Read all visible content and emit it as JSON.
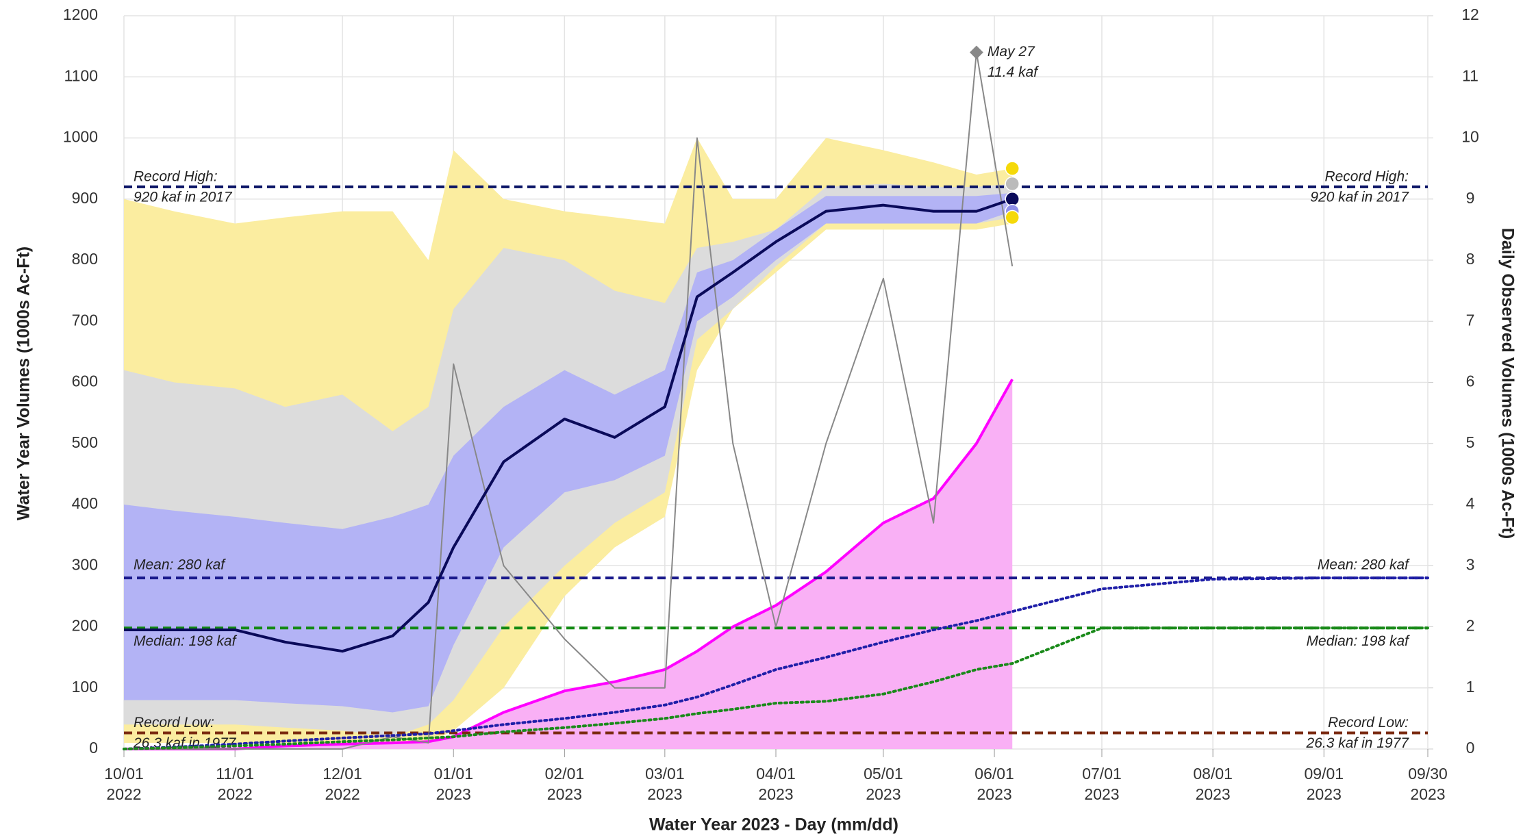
{
  "chart_data": {
    "type": "line",
    "xlabel": "Water Year 2023 - Day (mm/dd)",
    "ylabel": "Water Year Volumes (1000s Ac-Ft)",
    "y2label": "Daily Observed Volumes (1000s Ac-Ft)",
    "xlim": [
      "2022-10-01",
      "2023-09-30"
    ],
    "xticks": [
      {
        "value": "2022-10-01",
        "label": [
          "10/01",
          "2022"
        ]
      },
      {
        "value": "2022-11-01",
        "label": [
          "11/01",
          "2022"
        ]
      },
      {
        "value": "2022-12-01",
        "label": [
          "12/01",
          "2022"
        ]
      },
      {
        "value": "2023-01-01",
        "label": [
          "01/01",
          "2023"
        ]
      },
      {
        "value": "2023-02-01",
        "label": [
          "02/01",
          "2023"
        ]
      },
      {
        "value": "2023-03-01",
        "label": [
          "03/01",
          "2023"
        ]
      },
      {
        "value": "2023-04-01",
        "label": [
          "04/01",
          "2023"
        ]
      },
      {
        "value": "2023-05-01",
        "label": [
          "05/01",
          "2023"
        ]
      },
      {
        "value": "2023-06-01",
        "label": [
          "06/01",
          "2023"
        ]
      },
      {
        "value": "2023-07-01",
        "label": [
          "07/01",
          "2023"
        ]
      },
      {
        "value": "2023-08-01",
        "label": [
          "08/01",
          "2023"
        ]
      },
      {
        "value": "2023-09-01",
        "label": [
          "09/01",
          "2023"
        ]
      },
      {
        "value": "2023-09-30",
        "label": [
          "09/30",
          "2023"
        ]
      }
    ],
    "ylim": [
      0,
      1200
    ],
    "yticks": [
      0,
      100,
      200,
      300,
      400,
      500,
      600,
      700,
      800,
      900,
      1000,
      1100,
      1200
    ],
    "y2lim": [
      0,
      12
    ],
    "y2ticks": [
      0,
      1,
      2,
      3,
      4,
      5,
      6,
      7,
      8,
      9,
      10,
      11,
      12
    ],
    "grid": true,
    "x": [
      "2022-10-01",
      "2022-10-15",
      "2022-11-01",
      "2022-11-15",
      "2022-12-01",
      "2022-12-15",
      "2022-12-25",
      "2023-01-01",
      "2023-01-15",
      "2023-02-01",
      "2023-02-15",
      "2023-03-01",
      "2023-03-10",
      "2023-03-20",
      "2023-04-01",
      "2023-04-15",
      "2023-05-01",
      "2023-05-15",
      "2023-05-27",
      "2023-06-06",
      "2023-07-01",
      "2023-08-01",
      "2023-09-01",
      "2023-09-30"
    ],
    "bands": [
      {
        "color": "#fbeda0",
        "upper": [
          900,
          880,
          860,
          870,
          880,
          880,
          800,
          980,
          900,
          880,
          870,
          860,
          1000,
          900,
          900,
          1000,
          980,
          960,
          940,
          950,
          null,
          null,
          null,
          null
        ],
        "lower": [
          10,
          10,
          10,
          10,
          10,
          5,
          10,
          30,
          100,
          250,
          330,
          380,
          620,
          720,
          780,
          850,
          850,
          850,
          850,
          860,
          null,
          null,
          null,
          null
        ]
      },
      {
        "color": "#dcdcdc",
        "upper": [
          620,
          600,
          590,
          560,
          580,
          520,
          560,
          720,
          820,
          800,
          750,
          730,
          820,
          830,
          850,
          920,
          925,
          920,
          920,
          925,
          null,
          null,
          null,
          null
        ],
        "lower": [
          40,
          40,
          40,
          35,
          30,
          20,
          40,
          80,
          200,
          300,
          370,
          420,
          670,
          720,
          790,
          860,
          860,
          860,
          860,
          870,
          null,
          null,
          null,
          null
        ]
      },
      {
        "color": "#b3b3f5",
        "upper": [
          400,
          390,
          380,
          370,
          360,
          380,
          400,
          480,
          560,
          620,
          580,
          620,
          780,
          800,
          850,
          905,
          905,
          905,
          905,
          910,
          null,
          null,
          null,
          null
        ],
        "lower": [
          80,
          80,
          80,
          75,
          70,
          60,
          70,
          170,
          330,
          420,
          440,
          480,
          700,
          740,
          800,
          860,
          860,
          860,
          860,
          880,
          null,
          null,
          null,
          null
        ]
      }
    ],
    "area": {
      "color": "#ff00ff",
      "fill": "#f9b0f5",
      "values": [
        0,
        0,
        0,
        5,
        8,
        10,
        12,
        20,
        60,
        95,
        110,
        130,
        160,
        200,
        235,
        290,
        370,
        410,
        500,
        605,
        null,
        null,
        null,
        null
      ]
    },
    "lines": [
      {
        "color": "#888888",
        "axis": "y2",
        "style": "solid",
        "width": 2,
        "values": [
          0,
          0,
          0,
          0,
          0,
          0.2,
          0.1,
          6.3,
          3,
          1.8,
          1,
          1,
          10,
          5,
          2,
          5,
          7.7,
          3.7,
          11.4,
          7.9,
          null,
          null,
          null,
          null
        ]
      },
      {
        "color": "#1f1fa8",
        "axis": "y",
        "style": "dotted",
        "width": 4,
        "values": [
          0,
          3,
          8,
          13,
          18,
          22,
          25,
          30,
          40,
          50,
          60,
          72,
          85,
          105,
          130,
          150,
          175,
          195,
          210,
          225,
          262,
          278,
          280,
          280
        ]
      },
      {
        "color": "#1a8a1a",
        "axis": "y",
        "style": "dotted",
        "width": 4,
        "values": [
          0,
          2,
          5,
          8,
          12,
          15,
          18,
          20,
          28,
          35,
          42,
          50,
          58,
          65,
          75,
          78,
          90,
          110,
          130,
          140,
          198,
          198,
          198,
          198
        ]
      },
      {
        "color": "#0a0a5a",
        "axis": "y",
        "style": "solid",
        "width": 4,
        "values": [
          195,
          195,
          195,
          175,
          160,
          185,
          240,
          330,
          470,
          540,
          510,
          560,
          740,
          780,
          830,
          880,
          890,
          880,
          880,
          900,
          null,
          null,
          null,
          null
        ]
      }
    ],
    "reference_lines": [
      {
        "value": 920,
        "color": "#0a1466",
        "label": [
          "Record High:",
          "920 kaf in 2017"
        ]
      },
      {
        "value": 280,
        "color": "#1a1a8c",
        "label": [
          "Mean: 280 kaf"
        ]
      },
      {
        "value": 198,
        "color": "#138a13",
        "label": [
          "Median: 198 kaf"
        ]
      },
      {
        "value": 26.3,
        "color": "#7a2a10",
        "label": [
          "Record Low:",
          "26.3 kaf in 1977"
        ]
      }
    ],
    "forecast_points": {
      "x": "2023-06-06",
      "values": [
        950,
        925,
        900,
        880,
        870
      ],
      "colors": [
        "#f5d90a",
        "#bbbbbb",
        "#0a0a5a",
        "#8f8fe8",
        "#f5d90a"
      ]
    },
    "annotation": {
      "x": "2023-05-27",
      "value": 11.4,
      "label": [
        "May 27",
        "11.4 kaf"
      ]
    }
  }
}
